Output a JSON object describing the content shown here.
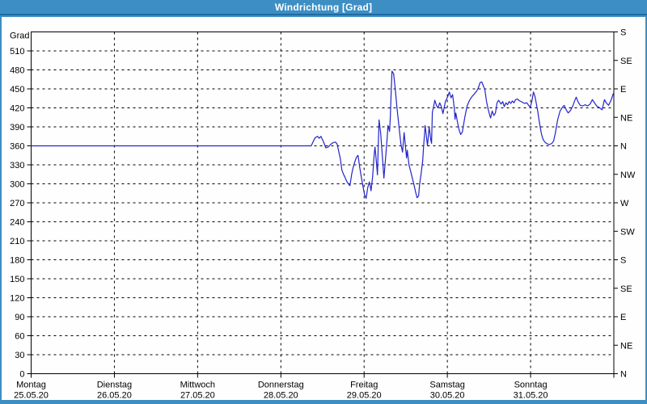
{
  "window": {
    "title": "Windrichtung [Grad]"
  },
  "colors": {
    "frame_blue": "#3d8ec3",
    "titlebar_underline": "#1e6ca4",
    "title_text": "#ffffff",
    "plot_background": "#fdfefd",
    "grid": "#000000",
    "axis": "#000000",
    "line": "#2424cc"
  },
  "chart_data": {
    "type": "line",
    "title": "Windrichtung [Grad]",
    "ylabel_left": "Grad",
    "ylim": [
      0,
      540
    ],
    "grid": "dashed",
    "legend": "none",
    "y_ticks_left": [
      0,
      30,
      60,
      90,
      120,
      150,
      180,
      210,
      240,
      270,
      300,
      330,
      360,
      390,
      420,
      450,
      480,
      510
    ],
    "y_ticks_right": [
      {
        "deg": 0,
        "label": "N"
      },
      {
        "deg": 45,
        "label": "NE"
      },
      {
        "deg": 90,
        "label": "E"
      },
      {
        "deg": 135,
        "label": "SE"
      },
      {
        "deg": 180,
        "label": "S"
      },
      {
        "deg": 225,
        "label": "SW"
      },
      {
        "deg": 270,
        "label": "W"
      },
      {
        "deg": 315,
        "label": "NW"
      },
      {
        "deg": 360,
        "label": "N"
      },
      {
        "deg": 405,
        "label": "NE"
      },
      {
        "deg": 450,
        "label": "E"
      },
      {
        "deg": 495,
        "label": "SE"
      },
      {
        "deg": 540,
        "label": "S"
      }
    ],
    "x_days": [
      {
        "weekday": "Montag",
        "date": "25.05.20"
      },
      {
        "weekday": "Dienstag",
        "date": "26.05.20"
      },
      {
        "weekday": "Mittwoch",
        "date": "27.05.20"
      },
      {
        "weekday": "Donnerstag",
        "date": "28.05.20"
      },
      {
        "weekday": "Freitag",
        "date": "29.05.20"
      },
      {
        "weekday": "Samstag",
        "date": "30.05.20"
      },
      {
        "weekday": "Sonntag",
        "date": "31.05.20"
      }
    ],
    "x_unit": "days since Montag 25.05.20 00:00",
    "series": [
      {
        "name": "Windrichtung",
        "unit": "Grad",
        "color": "#2424cc",
        "points": [
          [
            0.0,
            360
          ],
          [
            3.364,
            360
          ],
          [
            3.393,
            368
          ],
          [
            3.413,
            373
          ],
          [
            3.442,
            375
          ],
          [
            3.461,
            372
          ],
          [
            3.481,
            375
          ],
          [
            3.51,
            367
          ],
          [
            3.539,
            357
          ],
          [
            3.568,
            358
          ],
          [
            3.597,
            362
          ],
          [
            3.626,
            365
          ],
          [
            3.655,
            366
          ],
          [
            3.675,
            363
          ],
          [
            3.694,
            352
          ],
          [
            3.714,
            340
          ],
          [
            3.733,
            322
          ],
          [
            3.753,
            315
          ],
          [
            3.772,
            310
          ],
          [
            3.791,
            304
          ],
          [
            3.811,
            300
          ],
          [
            3.83,
            297
          ],
          [
            3.85,
            315
          ],
          [
            3.869,
            326
          ],
          [
            3.889,
            335
          ],
          [
            3.908,
            342
          ],
          [
            3.927,
            345
          ],
          [
            3.947,
            326
          ],
          [
            3.966,
            311
          ],
          [
            3.986,
            296
          ],
          [
            4.005,
            283
          ],
          [
            4.024,
            277
          ],
          [
            4.044,
            294
          ],
          [
            4.063,
            303
          ],
          [
            4.073,
            297
          ],
          [
            4.083,
            289
          ],
          [
            4.102,
            311
          ],
          [
            4.121,
            347
          ],
          [
            4.131,
            358
          ],
          [
            4.15,
            330
          ],
          [
            4.16,
            314
          ],
          [
            4.17,
            360
          ],
          [
            4.18,
            401
          ],
          [
            4.199,
            380
          ],
          [
            4.218,
            345
          ],
          [
            4.238,
            309
          ],
          [
            4.257,
            340
          ],
          [
            4.277,
            372
          ],
          [
            4.286,
            392
          ],
          [
            4.306,
            383
          ],
          [
            4.316,
            408
          ],
          [
            4.325,
            446
          ],
          [
            4.335,
            478
          ],
          [
            4.354,
            474
          ],
          [
            4.374,
            450
          ],
          [
            4.393,
            422
          ],
          [
            4.422,
            386
          ],
          [
            4.442,
            363
          ],
          [
            4.461,
            350
          ],
          [
            4.481,
            381
          ],
          [
            4.51,
            341
          ],
          [
            4.519,
            353
          ],
          [
            4.539,
            330
          ],
          [
            4.568,
            315
          ],
          [
            4.607,
            294
          ],
          [
            4.617,
            288
          ],
          [
            4.636,
            278
          ],
          [
            4.655,
            281
          ],
          [
            4.665,
            298
          ],
          [
            4.684,
            315
          ],
          [
            4.704,
            337
          ],
          [
            4.714,
            358
          ],
          [
            4.733,
            392
          ],
          [
            4.752,
            371
          ],
          [
            4.762,
            360
          ],
          [
            4.781,
            390
          ],
          [
            4.801,
            369
          ],
          [
            4.81,
            364
          ],
          [
            4.82,
            413
          ],
          [
            4.839,
            425
          ],
          [
            4.849,
            432
          ],
          [
            4.869,
            424
          ],
          [
            4.888,
            420
          ],
          [
            4.908,
            428
          ],
          [
            4.927,
            422
          ],
          [
            4.947,
            411
          ],
          [
            4.976,
            430
          ],
          [
            5.005,
            438
          ],
          [
            5.024,
            445
          ],
          [
            5.044,
            436
          ],
          [
            5.063,
            441
          ],
          [
            5.083,
            420
          ],
          [
            5.092,
            402
          ],
          [
            5.102,
            412
          ],
          [
            5.121,
            398
          ],
          [
            5.141,
            385
          ],
          [
            5.16,
            378
          ],
          [
            5.18,
            382
          ],
          [
            5.209,
            405
          ],
          [
            5.238,
            423
          ],
          [
            5.267,
            432
          ],
          [
            5.296,
            438
          ],
          [
            5.325,
            442
          ],
          [
            5.354,
            447
          ],
          [
            5.374,
            452
          ],
          [
            5.393,
            460
          ],
          [
            5.413,
            461
          ],
          [
            5.432,
            455
          ],
          [
            5.451,
            448
          ],
          [
            5.471,
            430
          ],
          [
            5.49,
            418
          ],
          [
            5.51,
            408
          ],
          [
            5.519,
            404
          ],
          [
            5.539,
            415
          ],
          [
            5.558,
            408
          ],
          [
            5.578,
            412
          ],
          [
            5.597,
            428
          ],
          [
            5.616,
            432
          ],
          [
            5.646,
            426
          ],
          [
            5.665,
            430
          ],
          [
            5.684,
            422
          ],
          [
            5.704,
            428
          ],
          [
            5.723,
            425
          ],
          [
            5.742,
            430
          ],
          [
            5.762,
            427
          ],
          [
            5.781,
            431
          ],
          [
            5.8,
            428
          ],
          [
            5.82,
            433
          ],
          [
            5.839,
            434
          ],
          [
            5.869,
            431
          ],
          [
            5.898,
            429
          ],
          [
            5.927,
            427
          ],
          [
            5.956,
            428
          ],
          [
            5.976,
            424
          ],
          [
            5.995,
            421
          ],
          [
            6.015,
            430
          ],
          [
            6.034,
            445
          ],
          [
            6.053,
            438
          ],
          [
            6.083,
            417
          ],
          [
            6.112,
            392
          ],
          [
            6.131,
            378
          ],
          [
            6.151,
            370
          ],
          [
            6.17,
            366
          ],
          [
            6.199,
            363
          ],
          [
            6.228,
            362
          ],
          [
            6.257,
            364
          ],
          [
            6.277,
            368
          ],
          [
            6.296,
            379
          ],
          [
            6.325,
            401
          ],
          [
            6.354,
            415
          ],
          [
            6.383,
            421
          ],
          [
            6.403,
            424
          ],
          [
            6.432,
            416
          ],
          [
            6.451,
            412
          ],
          [
            6.48,
            416
          ],
          [
            6.509,
            424
          ],
          [
            6.529,
            431
          ],
          [
            6.548,
            437
          ],
          [
            6.568,
            430
          ],
          [
            6.597,
            424
          ],
          [
            6.626,
            423
          ],
          [
            6.655,
            425
          ],
          [
            6.684,
            423
          ],
          [
            6.714,
            426
          ],
          [
            6.743,
            433
          ],
          [
            6.772,
            427
          ],
          [
            6.801,
            422
          ],
          [
            6.82,
            421
          ],
          [
            6.84,
            419
          ],
          [
            6.859,
            417
          ],
          [
            6.879,
            428
          ],
          [
            6.888,
            433
          ],
          [
            6.908,
            428
          ],
          [
            6.937,
            424
          ],
          [
            6.966,
            432
          ],
          [
            6.995,
            443
          ]
        ]
      }
    ]
  }
}
